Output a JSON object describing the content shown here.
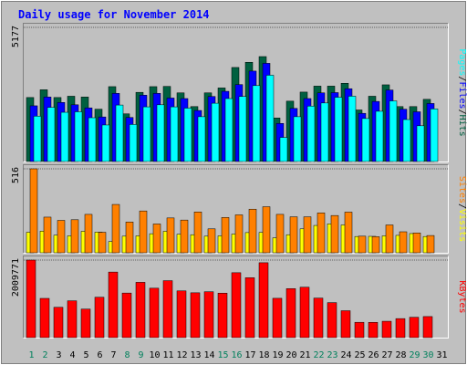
{
  "chart_data": [
    {
      "type": "bar",
      "panel": "top",
      "title": "Daily usage for November 2014",
      "ylabel_max": "5177",
      "ylim": [
        0,
        5177
      ],
      "categories": [
        "1",
        "2",
        "3",
        "4",
        "5",
        "6",
        "7",
        "8",
        "9",
        "10",
        "11",
        "12",
        "13",
        "14",
        "15",
        "16",
        "17",
        "18",
        "19",
        "20",
        "21",
        "22",
        "23",
        "24",
        "25",
        "26",
        "27",
        "28",
        "29",
        "30",
        "31"
      ],
      "weekend_days": [
        "1",
        "2",
        "8",
        "9",
        "15",
        "16",
        "22",
        "23",
        "29",
        "30"
      ],
      "series": [
        {
          "name": "Hits",
          "color": "#006040",
          "values": [
            2470,
            2770,
            2470,
            2520,
            2490,
            2020,
            2890,
            1840,
            2670,
            2890,
            2900,
            2650,
            2120,
            2650,
            2840,
            3630,
            3830,
            4050,
            1680,
            2330,
            2680,
            2910,
            2910,
            3020,
            1990,
            2520,
            2960,
            2120,
            2120,
            2400,
            0
          ]
        },
        {
          "name": "Files",
          "color": "#0000ff",
          "values": [
            2150,
            2490,
            2280,
            2190,
            2070,
            1720,
            2630,
            1700,
            2560,
            2630,
            2450,
            2430,
            1970,
            2510,
            2710,
            2970,
            3490,
            3790,
            1470,
            2050,
            2430,
            2650,
            2660,
            2810,
            1860,
            2320,
            2760,
            2020,
            1920,
            2240,
            0
          ]
        },
        {
          "name": "Pages",
          "color": "#00ffff",
          "values": [
            1750,
            2090,
            1900,
            1920,
            1690,
            1410,
            2180,
            1430,
            2110,
            2190,
            2110,
            2060,
            1730,
            2250,
            2430,
            2510,
            2930,
            3330,
            930,
            1730,
            2140,
            2260,
            2480,
            2520,
            1660,
            1940,
            2340,
            1620,
            1380,
            2030,
            0
          ]
        }
      ],
      "legend": [
        "Pages",
        "Files",
        "Hits"
      ]
    },
    {
      "type": "bar",
      "panel": "middle",
      "ylabel_max": "516",
      "ylim": [
        0,
        516
      ],
      "series": [
        {
          "name": "Visits",
          "color": "#ffff00",
          "values": [
            126,
            133,
            108,
            104,
            132,
            127,
            69,
            102,
            104,
            117,
            132,
            114,
            111,
            102,
            104,
            115,
            124,
            125,
            92,
            111,
            147,
            168,
            178,
            171,
            100,
            101,
            104,
            107,
            118,
            100,
            0
          ]
        },
        {
          "name": "Sites",
          "color": "#ff8000",
          "values": [
            516,
            219,
            199,
            203,
            236,
            126,
            297,
            189,
            257,
            177,
            214,
            201,
            251,
            147,
            217,
            233,
            268,
            283,
            236,
            221,
            221,
            245,
            229,
            250,
            102,
            99,
            171,
            129,
            122,
            106,
            0
          ]
        }
      ],
      "legend": [
        "Sites",
        "Visits"
      ]
    },
    {
      "type": "bar",
      "panel": "bottom",
      "ylabel_max": "2009771",
      "ylim": [
        0,
        2009771
      ],
      "series": [
        {
          "name": "KBytes",
          "color": "#ff0000",
          "values": [
            2009771,
            1017000,
            786000,
            954000,
            740000,
            1047000,
            1699000,
            1155000,
            1433000,
            1281000,
            1476000,
            1211000,
            1162000,
            1189000,
            1153000,
            1682000,
            1552000,
            1941000,
            1019000,
            1270000,
            1307000,
            1025000,
            907000,
            697000,
            397000,
            396000,
            424000,
            493000,
            528000,
            546000,
            0
          ]
        }
      ],
      "legend": [
        "KBytes"
      ]
    }
  ],
  "colors": {
    "background": "#c0c0c0",
    "plot_bg": "#c0c0c0",
    "title_text": "#0000ff",
    "axis_text": "#000000",
    "weekend_text": "#00805c",
    "legend_separator": "#000000"
  }
}
